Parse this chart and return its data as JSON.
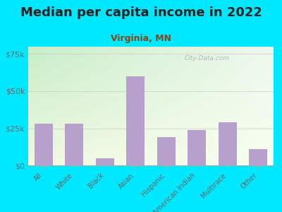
{
  "title": "Median per capita income in 2022",
  "subtitle": "Virginia, MN",
  "categories": [
    "All",
    "White",
    "Black",
    "Asian",
    "Hispanic",
    "American Indian",
    "Multirace",
    "Other"
  ],
  "values": [
    28000,
    28000,
    5000,
    60000,
    19000,
    24000,
    29000,
    11000
  ],
  "bar_color": "#b8a0cc",
  "background_outer": "#00e8ff",
  "title_color": "#222222",
  "subtitle_color": "#8B4513",
  "tick_label_color": "#666666",
  "ytick_labels": [
    "$0",
    "$25k",
    "$50k",
    "$75k"
  ],
  "ytick_values": [
    0,
    25000,
    50000,
    75000
  ],
  "ylim": [
    0,
    80000
  ],
  "watermark": "City-Data.com",
  "title_fontsize": 13,
  "subtitle_fontsize": 9,
  "grad_color_topleft": "#c8eec8",
  "grad_color_bottomright": "#f8fff0"
}
